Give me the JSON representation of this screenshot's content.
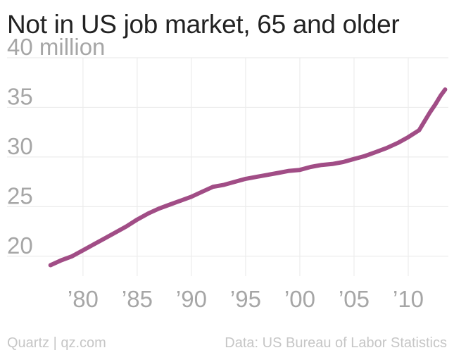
{
  "title": "Not in US job market, 65 and older",
  "footer": {
    "source_left": "Quartz | qz.com",
    "source_right": "Data: US Bureau of Labor Statistics"
  },
  "colors": {
    "line": "#a14d86",
    "grid": "#ececec",
    "tick_text": "#a6a6a6",
    "title": "#222222",
    "footer": "#c6c6c6"
  },
  "chart_data": {
    "type": "line",
    "title": "Not in US job market, 65 and older",
    "xlabel": "",
    "ylabel": "",
    "xlim": [
      1976.5,
      2013.7
    ],
    "ylim": [
      18,
      40
    ],
    "x_ticks": [
      1980,
      1985,
      1990,
      1995,
      2000,
      2005,
      2010
    ],
    "x_tick_labels": [
      "’80",
      "’85",
      "’90",
      "’95",
      "’00",
      "’05",
      "’10"
    ],
    "y_ticks": [
      20,
      25,
      30,
      35,
      40
    ],
    "y_tick_labels": [
      "20",
      "25",
      "30",
      "35",
      "40 million"
    ],
    "grid": true,
    "legend": "none",
    "series": [
      {
        "x": [
          1977.0,
          1978.0,
          1979.0,
          1980.0,
          1981.0,
          1982.0,
          1983.0,
          1984.0,
          1985.0,
          1986.0,
          1987.0,
          1988.0,
          1989.0,
          1990.0,
          1991.0,
          1992.0,
          1993.0,
          1994.0,
          1995.0,
          1996.0,
          1997.0,
          1998.0,
          1999.0,
          2000.0,
          2001.0,
          2002.0,
          2003.0,
          2004.0,
          2005.0,
          2006.0,
          2007.0,
          2008.0,
          2009.0,
          2010.0,
          2011.0,
          2011.5,
          2012.0,
          2012.5,
          2013.0,
          2013.4
        ],
        "values": [
          19.1,
          19.6,
          20.0,
          20.6,
          21.2,
          21.8,
          22.4,
          23.0,
          23.7,
          24.3,
          24.8,
          25.2,
          25.6,
          26.0,
          26.5,
          27.0,
          27.2,
          27.5,
          27.8,
          28.0,
          28.2,
          28.4,
          28.6,
          28.7,
          29.0,
          29.2,
          29.3,
          29.5,
          29.8,
          30.1,
          30.5,
          30.9,
          31.4,
          32.0,
          32.7,
          33.6,
          34.5,
          35.3,
          36.2,
          36.8
        ]
      }
    ]
  }
}
